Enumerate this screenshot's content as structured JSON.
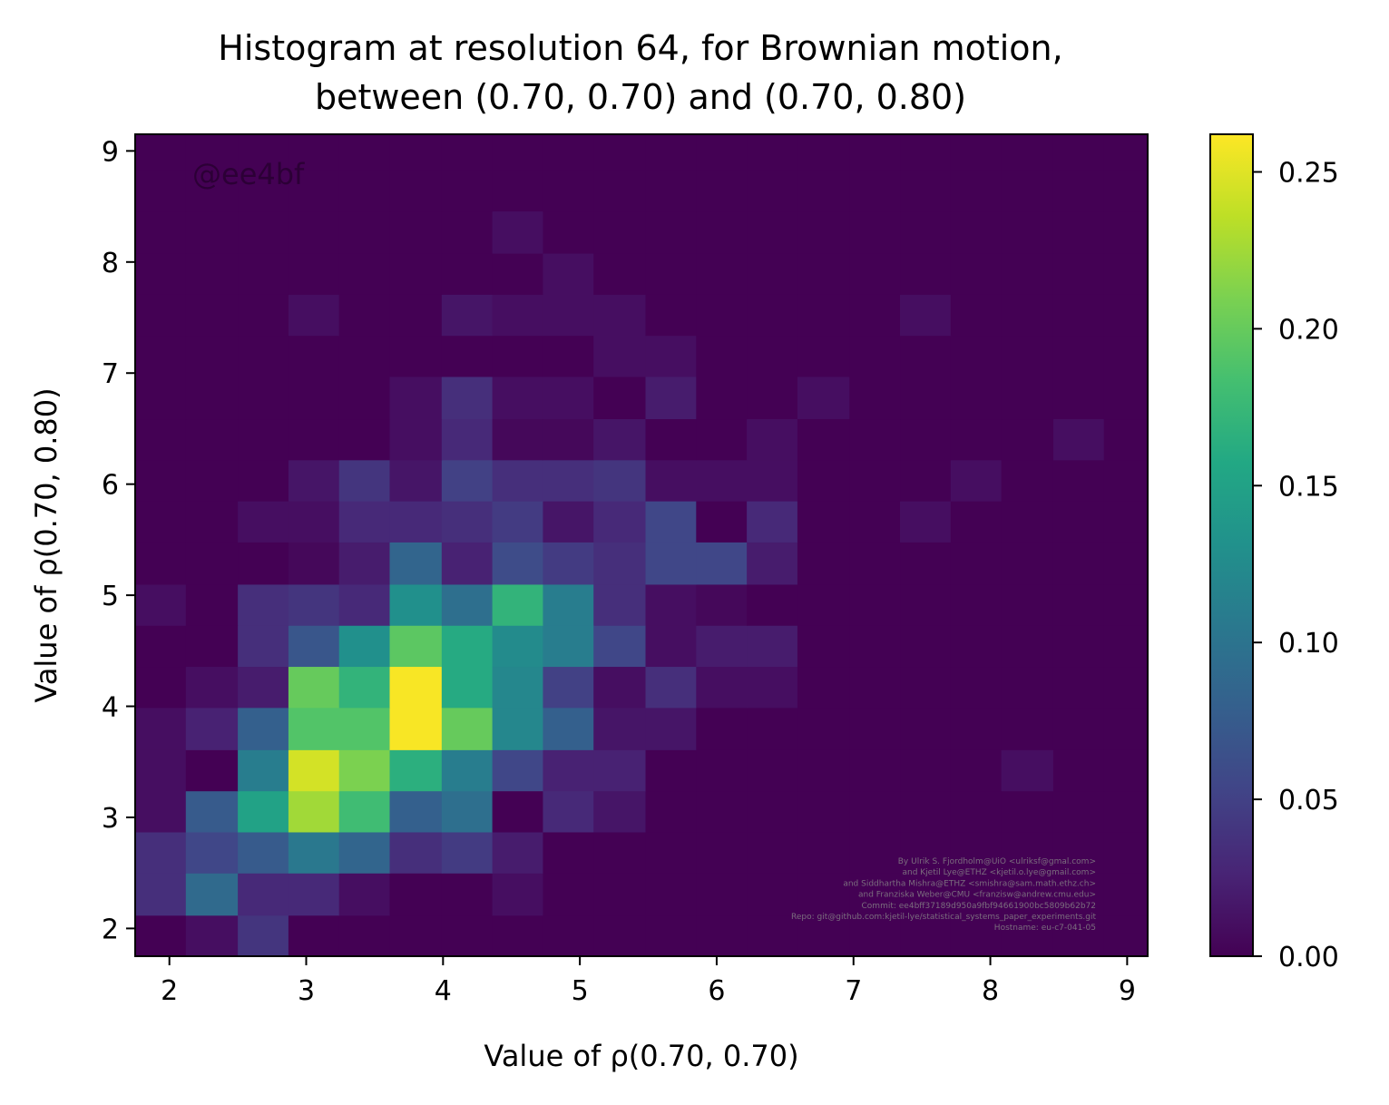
{
  "chart_data": {
    "type": "heatmap",
    "title_lines": [
      "Histogram at resolution 64, for Brownian motion,",
      "between (0.70, 0.70) and (0.70, 0.80)"
    ],
    "xlabel": "Value of ρ(0.70, 0.70)",
    "ylabel": "Value of ρ(0.70, 0.80)",
    "xlim": [
      1.75,
      9.15
    ],
    "ylim": [
      1.75,
      9.15
    ],
    "x_ticks": [
      2,
      3,
      4,
      5,
      6,
      7,
      8,
      9
    ],
    "y_ticks": [
      2,
      3,
      4,
      5,
      6,
      7,
      8,
      9
    ],
    "x_bin_edges": [
      1.75,
      2.12,
      2.5,
      2.87,
      3.24,
      3.61,
      3.99,
      4.36,
      4.73,
      5.1,
      5.48,
      5.85,
      6.22,
      6.59,
      6.97,
      7.34,
      7.71,
      8.08,
      8.46,
      8.83,
      9.2
    ],
    "y_bin_edges": [
      1.75,
      2.12,
      2.5,
      2.87,
      3.24,
      3.61,
      3.99,
      4.36,
      4.73,
      5.1,
      5.48,
      5.85,
      6.22,
      6.59,
      6.97,
      7.34,
      7.71,
      8.08,
      8.46,
      8.83,
      9.2
    ],
    "colorbar": {
      "colormap": "viridis",
      "min": 0.0,
      "max": 0.262,
      "ticks": [
        "0.00",
        "0.05",
        "0.10",
        "0.15",
        "0.20",
        "0.25"
      ]
    },
    "values": [
      [
        0.0,
        0.01,
        0.04,
        0.0,
        0.0,
        0.0,
        0.0,
        0.0,
        0.0,
        0.0,
        0.0,
        0.0,
        0.0,
        0.0,
        0.0,
        0.0,
        0.0,
        0.0,
        0.0,
        0.0
      ],
      [
        0.035,
        0.09,
        0.03,
        0.03,
        0.01,
        0.0,
        0.0,
        0.01,
        0.0,
        0.0,
        0.0,
        0.0,
        0.0,
        0.0,
        0.0,
        0.0,
        0.0,
        0.0,
        0.0,
        0.0
      ],
      [
        0.035,
        0.055,
        0.075,
        0.105,
        0.085,
        0.035,
        0.045,
        0.02,
        0.0,
        0.0,
        0.0,
        0.0,
        0.0,
        0.0,
        0.0,
        0.0,
        0.0,
        0.0,
        0.0,
        0.0
      ],
      [
        0.01,
        0.075,
        0.15,
        0.225,
        0.18,
        0.08,
        0.095,
        0.0,
        0.03,
        0.015,
        0.0,
        0.0,
        0.0,
        0.0,
        0.0,
        0.0,
        0.0,
        0.0,
        0.0,
        0.0
      ],
      [
        0.01,
        0.0,
        0.11,
        0.245,
        0.21,
        0.165,
        0.11,
        0.055,
        0.025,
        0.025,
        0.0,
        0.0,
        0.0,
        0.0,
        0.0,
        0.0,
        0.0,
        0.01,
        0.0,
        0.0
      ],
      [
        0.01,
        0.025,
        0.08,
        0.19,
        0.19,
        0.26,
        0.2,
        0.12,
        0.08,
        0.015,
        0.015,
        0.0,
        0.0,
        0.0,
        0.0,
        0.0,
        0.0,
        0.0,
        0.0,
        0.0
      ],
      [
        0.0,
        0.01,
        0.02,
        0.2,
        0.17,
        0.26,
        0.16,
        0.12,
        0.05,
        0.01,
        0.035,
        0.01,
        0.01,
        0.0,
        0.0,
        0.0,
        0.0,
        0.0,
        0.0,
        0.0
      ],
      [
        0.0,
        0.0,
        0.035,
        0.07,
        0.13,
        0.195,
        0.16,
        0.125,
        0.11,
        0.055,
        0.01,
        0.02,
        0.02,
        0.0,
        0.0,
        0.0,
        0.0,
        0.0,
        0.0,
        0.0
      ],
      [
        0.01,
        0.0,
        0.035,
        0.04,
        0.03,
        0.13,
        0.095,
        0.17,
        0.11,
        0.035,
        0.01,
        0.005,
        0.0,
        0.0,
        0.0,
        0.0,
        0.0,
        0.0,
        0.0,
        0.0
      ],
      [
        0.0,
        0.0,
        0.0,
        0.005,
        0.02,
        0.085,
        0.025,
        0.06,
        0.045,
        0.035,
        0.055,
        0.055,
        0.02,
        0.0,
        0.0,
        0.0,
        0.0,
        0.0,
        0.0,
        0.0
      ],
      [
        0.0,
        0.0,
        0.01,
        0.01,
        0.03,
        0.03,
        0.035,
        0.045,
        0.015,
        0.03,
        0.055,
        0.0,
        0.03,
        0.0,
        0.0,
        0.01,
        0.0,
        0.0,
        0.0,
        0.0
      ],
      [
        0.0,
        0.0,
        0.0,
        0.015,
        0.04,
        0.015,
        0.05,
        0.035,
        0.035,
        0.04,
        0.01,
        0.01,
        0.01,
        0.0,
        0.0,
        0.0,
        0.01,
        0.0,
        0.0,
        0.0
      ],
      [
        0.0,
        0.0,
        0.0,
        0.0,
        0.0,
        0.01,
        0.03,
        0.005,
        0.005,
        0.015,
        0.0,
        0.0,
        0.01,
        0.0,
        0.0,
        0.0,
        0.0,
        0.0,
        0.01,
        0.0
      ],
      [
        0.0,
        0.0,
        0.0,
        0.0,
        0.0,
        0.01,
        0.035,
        0.01,
        0.01,
        0.0,
        0.02,
        0.0,
        0.0,
        0.01,
        0.0,
        0.0,
        0.0,
        0.0,
        0.0,
        0.0
      ],
      [
        0.0,
        0.0,
        0.0,
        0.0,
        0.0,
        0.0,
        0.0,
        0.0,
        0.0,
        0.01,
        0.01,
        0.0,
        0.0,
        0.0,
        0.0,
        0.0,
        0.0,
        0.0,
        0.0,
        0.0
      ],
      [
        0.0,
        0.0,
        0.0,
        0.01,
        0.0,
        0.0,
        0.015,
        0.01,
        0.01,
        0.01,
        0.0,
        0.0,
        0.0,
        0.0,
        0.0,
        0.01,
        0.0,
        0.0,
        0.0,
        0.0
      ],
      [
        0.0,
        0.0,
        0.0,
        0.0,
        0.0,
        0.0,
        0.0,
        0.0,
        0.01,
        0.0,
        0.0,
        0.0,
        0.0,
        0.0,
        0.0,
        0.0,
        0.0,
        0.0,
        0.0,
        0.0
      ],
      [
        0.0,
        0.0,
        0.0,
        0.0,
        0.0,
        0.0,
        0.0,
        0.01,
        0.0,
        0.0,
        0.0,
        0.0,
        0.0,
        0.0,
        0.0,
        0.0,
        0.0,
        0.0,
        0.0,
        0.0
      ],
      [
        0.0,
        0.0,
        0.0,
        0.0,
        0.0,
        0.0,
        0.0,
        0.0,
        0.0,
        0.0,
        0.0,
        0.0,
        0.0,
        0.0,
        0.0,
        0.0,
        0.0,
        0.0,
        0.0,
        0.0
      ],
      [
        0.0,
        0.0,
        0.0,
        0.0,
        0.0,
        0.0,
        0.0,
        0.0,
        0.0,
        0.0,
        0.0,
        0.0,
        0.0,
        0.0,
        0.0,
        0.0,
        0.0,
        0.0,
        0.0,
        0.0
      ]
    ],
    "grid": false,
    "watermark": "@ee4bf",
    "credits": [
      "By Ulrik S. Fjordholm@UiO <ulriksf@gmal.com>",
      "and Kjetil Lye@ETHZ <kjetil.o.lye@gmail.com>",
      "and Siddhartha Mishra@ETHZ <smishra@sam.math.ethz.ch>",
      "and Franziska Weber@CMU <franzisw@andrew.cmu.edu>",
      "Commit: ee4bff37189d950a9fbf94661900bc5809b62b72",
      "Repo: git@github.com:kjetil-lye/statistical_systems_paper_experiments.git",
      "Hostname: eu-c7-041-05"
    ]
  }
}
